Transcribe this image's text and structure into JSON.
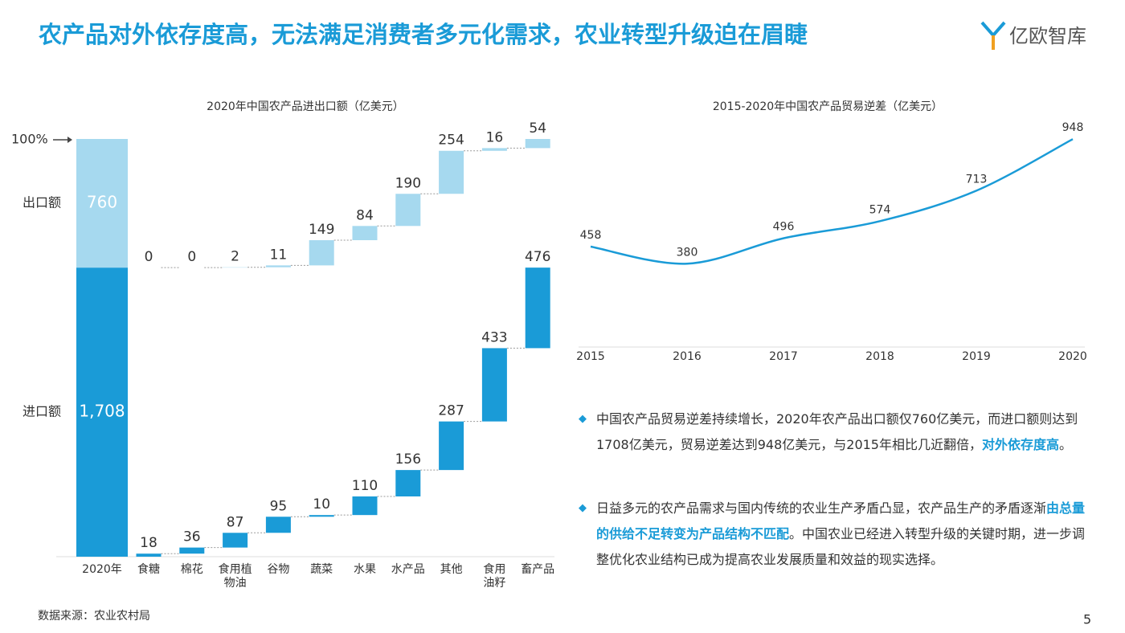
{
  "title": "农产品对外依存度高，无法满足消费者多元化需求，农业转型升级迫在眉睫",
  "logo": "亿欧智库",
  "chart_data": [
    {
      "type": "waterfall",
      "title": "2020年中国农产品进出口额（亿美元）",
      "annotation": "100%",
      "categories": [
        "2020年",
        "食糖",
        "棉花",
        "食用植\n物油",
        "谷物",
        "蔬菜",
        "水果",
        "水产品",
        "其他",
        "食用\n油籽",
        "畜产品"
      ],
      "series": [
        {
          "name": "进口额",
          "color": "#1a9bd7",
          "values": [
            1708,
            18,
            36,
            87,
            95,
            10,
            110,
            156,
            287,
            433,
            476
          ],
          "value_labels": [
            "1,708",
            "18",
            "36",
            "87",
            "95",
            "10",
            "110",
            "156",
            "287",
            "433",
            "476"
          ]
        },
        {
          "name": "出口额",
          "color": "#a6d9ef",
          "values": [
            760,
            0,
            0,
            2,
            11,
            149,
            84,
            190,
            254,
            16,
            54
          ]
        }
      ]
    },
    {
      "type": "line",
      "title": "2015-2020年中国农产品贸易逆差（亿美元）",
      "x": [
        2015,
        2016,
        2017,
        2018,
        2019,
        2020
      ],
      "xlim": [
        2015,
        2020
      ],
      "ylim": [
        0,
        1000
      ],
      "series": [
        {
          "name": "贸易逆差",
          "color": "#1a9bd7",
          "values": [
            458,
            380,
            496,
            574,
            713,
            948
          ]
        }
      ]
    }
  ],
  "bullets": [
    [
      "中国农产品贸易逆差持续增长，2020年农产品出口额仅760亿美元，而进口额则达到1708亿美元，贸易逆差达到948亿美元，与2015年相比几近翻倍，",
      "对外依存度高",
      "。"
    ],
    [
      "日益多元的农产品需求与国内传统的农业生产矛盾凸显，农产品生产的矛盾逐渐",
      "由总量的供给不足转变为产品结构不匹配",
      "。中国农业已经进入转型升级的关键时期，进一步调整优化农业结构已成为提高农业发展质量和效益的现实选择。"
    ]
  ],
  "source": "数据来源：农业农村局",
  "page_number": "5"
}
